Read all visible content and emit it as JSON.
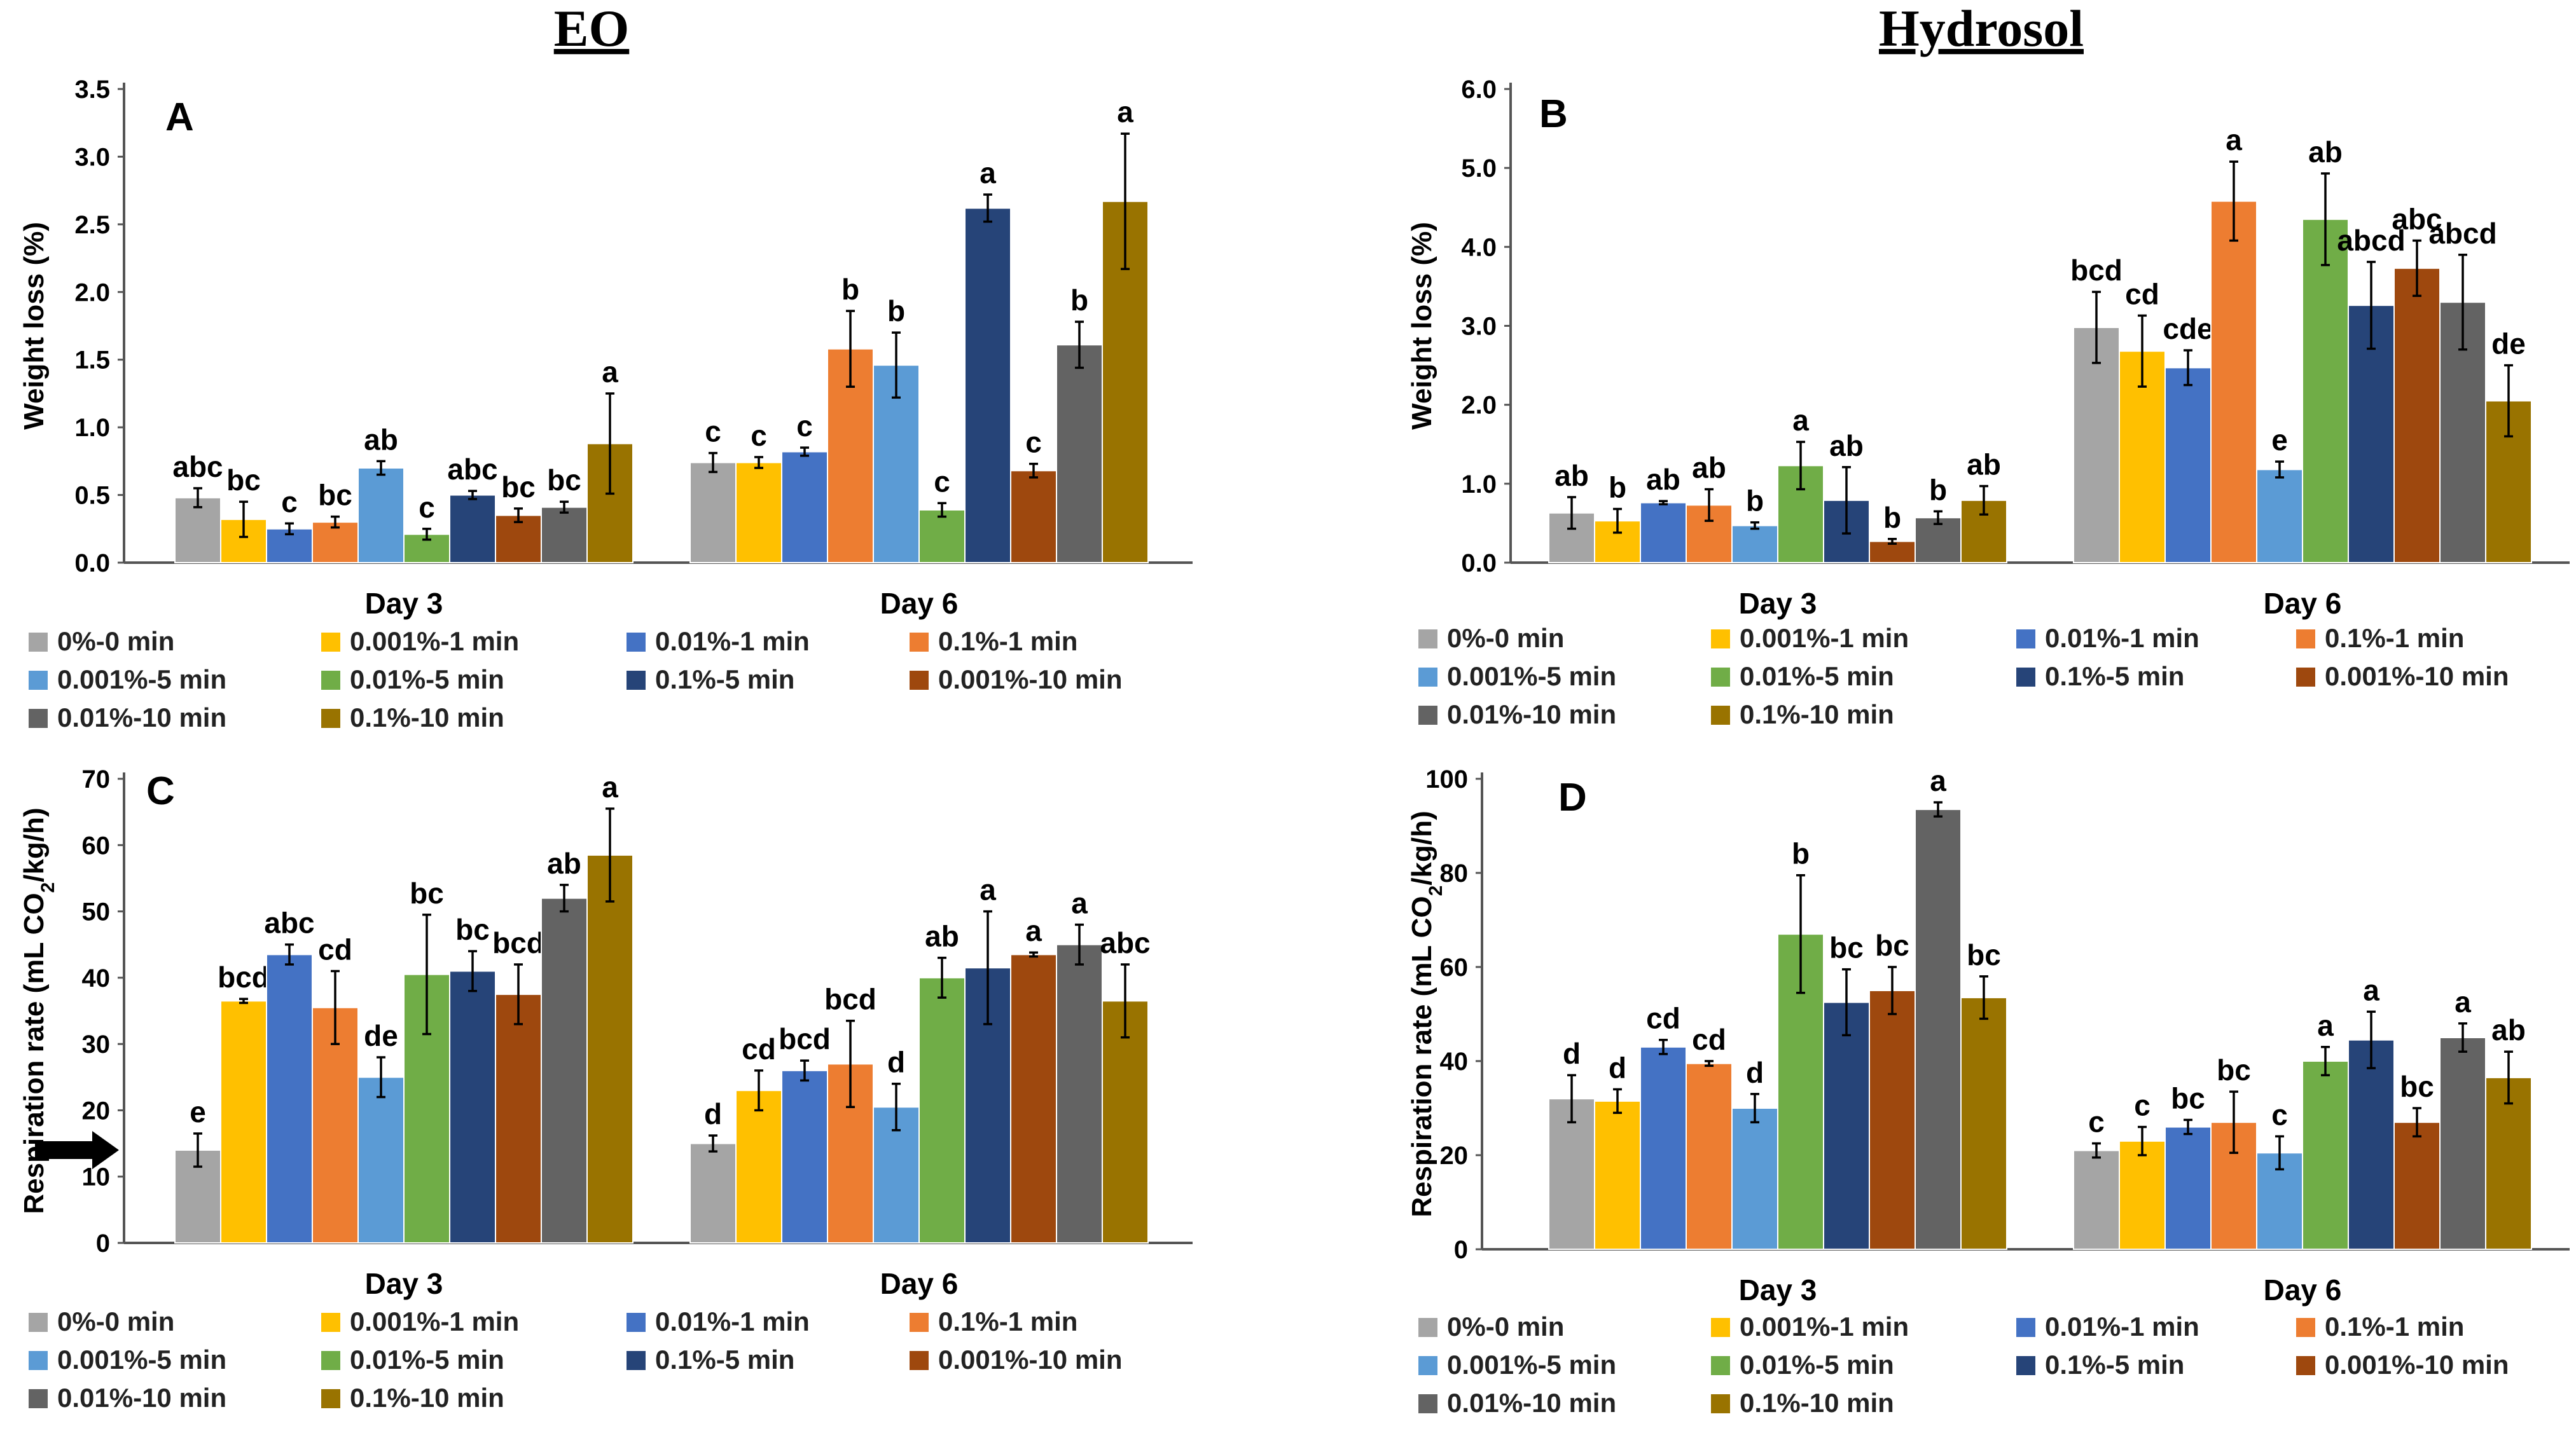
{
  "section_titles": {
    "left": "EO",
    "right": "Hydrosol"
  },
  "series_labels": [
    "0%-0 min",
    "0.001%-1 min",
    "0.01%-1 min",
    "0.1%-1 min",
    "0.001%-5 min",
    "0.01%-5 min",
    "0.1%-5 min",
    "0.001%-10 min",
    "0.01%-10 min",
    "0.1%-10 min"
  ],
  "series_colors": [
    "#a5a5a5",
    "#ffc000",
    "#4472c4",
    "#ed7d31",
    "#5b9bd5",
    "#70ad47",
    "#264478",
    "#9e480e",
    "#636363",
    "#997300"
  ],
  "chart_data": [
    {
      "panel": "A",
      "type": "bar",
      "title": "",
      "xlabel": "",
      "ylabel": "Weight loss (%)",
      "categories": [
        "Day 3",
        "Day 6"
      ],
      "ylim": [
        0,
        3.5
      ],
      "yticks": [
        "0.0",
        "0.5",
        "1.0",
        "1.5",
        "2.0",
        "2.5",
        "3.0",
        "3.5"
      ],
      "series": [
        {
          "name": "0%-0 min",
          "values": [
            0.48,
            0.74
          ],
          "errors": [
            0.07,
            0.07
          ],
          "letters": [
            "abc",
            "c"
          ]
        },
        {
          "name": "0.001%-1 min",
          "values": [
            0.32,
            0.74
          ],
          "errors": [
            0.13,
            0.04
          ],
          "letters": [
            "bc",
            "c"
          ]
        },
        {
          "name": "0.01%-1 min",
          "values": [
            0.25,
            0.82
          ],
          "errors": [
            0.04,
            0.03
          ],
          "letters": [
            "c",
            "c"
          ]
        },
        {
          "name": "0.1%-1 min",
          "values": [
            0.3,
            1.58
          ],
          "errors": [
            0.04,
            0.28
          ],
          "letters": [
            "bc",
            "b"
          ]
        },
        {
          "name": "0.001%-5 min",
          "values": [
            0.7,
            1.46
          ],
          "errors": [
            0.05,
            0.24
          ],
          "letters": [
            "ab",
            "b"
          ]
        },
        {
          "name": "0.01%-5 min",
          "values": [
            0.21,
            0.39
          ],
          "errors": [
            0.04,
            0.05
          ],
          "letters": [
            "c",
            "c"
          ]
        },
        {
          "name": "0.1%-5 min",
          "values": [
            0.5,
            2.62
          ],
          "errors": [
            0.03,
            0.1
          ],
          "letters": [
            "abc",
            "a"
          ]
        },
        {
          "name": "0.001%-10 min",
          "values": [
            0.35,
            0.68
          ],
          "errors": [
            0.05,
            0.05
          ],
          "letters": [
            "bc",
            "c"
          ]
        },
        {
          "name": "0.01%-10 min",
          "values": [
            0.41,
            1.61
          ],
          "errors": [
            0.04,
            0.17
          ],
          "letters": [
            "bc",
            "b"
          ]
        },
        {
          "name": "0.1%-10 min",
          "values": [
            0.88,
            2.67
          ],
          "errors": [
            0.37,
            0.5
          ],
          "letters": [
            "a",
            "a"
          ]
        }
      ]
    },
    {
      "panel": "B",
      "type": "bar",
      "title": "",
      "xlabel": "",
      "ylabel": "Weight loss (%)",
      "categories": [
        "Day 3",
        "Day 6"
      ],
      "ylim": [
        0,
        6.0
      ],
      "yticks": [
        "0.0",
        "1.0",
        "2.0",
        "3.0",
        "4.0",
        "5.0",
        "6.0"
      ],
      "series": [
        {
          "name": "0%-0 min",
          "values": [
            0.63,
            2.98
          ],
          "errors": [
            0.2,
            0.45
          ],
          "letters": [
            "ab",
            "bcd"
          ]
        },
        {
          "name": "0.001%-1 min",
          "values": [
            0.53,
            2.68
          ],
          "errors": [
            0.15,
            0.45
          ],
          "letters": [
            "b",
            "cd"
          ]
        },
        {
          "name": "0.01%-1 min",
          "values": [
            0.76,
            2.47
          ],
          "errors": [
            0.02,
            0.22
          ],
          "letters": [
            "ab",
            "cde"
          ]
        },
        {
          "name": "0.1%-1 min",
          "values": [
            0.73,
            4.58
          ],
          "errors": [
            0.2,
            0.5
          ],
          "letters": [
            "ab",
            "a"
          ]
        },
        {
          "name": "0.001%-5 min",
          "values": [
            0.47,
            1.18
          ],
          "errors": [
            0.04,
            0.1
          ],
          "letters": [
            "b",
            "e"
          ]
        },
        {
          "name": "0.01%-5 min",
          "values": [
            1.23,
            4.35
          ],
          "errors": [
            0.3,
            0.58
          ],
          "letters": [
            "a",
            "ab"
          ]
        },
        {
          "name": "0.1%-5 min",
          "values": [
            0.79,
            3.26
          ],
          "errors": [
            0.42,
            0.55
          ],
          "letters": [
            "ab",
            "abcd"
          ]
        },
        {
          "name": "0.001%-10 min",
          "values": [
            0.27,
            3.73
          ],
          "errors": [
            0.03,
            0.35
          ],
          "letters": [
            "b",
            "abc"
          ]
        },
        {
          "name": "0.01%-10 min",
          "values": [
            0.57,
            3.3
          ],
          "errors": [
            0.08,
            0.6
          ],
          "letters": [
            "b",
            "abcd"
          ]
        },
        {
          "name": "0.1%-10 min",
          "values": [
            0.79,
            2.05
          ],
          "errors": [
            0.18,
            0.45
          ],
          "letters": [
            "ab",
            "de"
          ]
        }
      ]
    },
    {
      "panel": "C",
      "type": "bar",
      "title": "",
      "xlabel": "",
      "ylabel": "Respiration rate (mL CO2/kg/h)",
      "categories": [
        "Day 3",
        "Day 6"
      ],
      "ylim": [
        0,
        70
      ],
      "yticks": [
        "0",
        "10",
        "20",
        "30",
        "40",
        "50",
        "60",
        "70"
      ],
      "series": [
        {
          "name": "0%-0 min",
          "values": [
            14,
            15
          ],
          "errors": [
            2.5,
            1.2
          ],
          "letters": [
            "e",
            "d"
          ]
        },
        {
          "name": "0.001%-1 min",
          "values": [
            36.5,
            23
          ],
          "errors": [
            0.3,
            3
          ],
          "letters": [
            "bcd",
            "cd"
          ]
        },
        {
          "name": "0.01%-1 min",
          "values": [
            43.5,
            26
          ],
          "errors": [
            1.5,
            1.5
          ],
          "letters": [
            "abc",
            "bcd"
          ]
        },
        {
          "name": "0.1%-1 min",
          "values": [
            35.5,
            27
          ],
          "errors": [
            5.5,
            6.5
          ],
          "letters": [
            "cd",
            "bcd"
          ]
        },
        {
          "name": "0.001%-5 min",
          "values": [
            25,
            20.5
          ],
          "errors": [
            3,
            3.5
          ],
          "letters": [
            "de",
            "d"
          ]
        },
        {
          "name": "0.01%-5 min",
          "values": [
            40.5,
            40
          ],
          "errors": [
            9,
            3
          ],
          "letters": [
            "bc",
            "ab"
          ]
        },
        {
          "name": "0.1%-5 min",
          "values": [
            41,
            41.5
          ],
          "errors": [
            3,
            8.5
          ],
          "letters": [
            "bc",
            "a"
          ]
        },
        {
          "name": "0.001%-10 min",
          "values": [
            37.5,
            43.5
          ],
          "errors": [
            4.5,
            0.3
          ],
          "letters": [
            "bcd",
            "a"
          ]
        },
        {
          "name": "0.01%-10 min",
          "values": [
            52,
            45
          ],
          "errors": [
            2,
            3
          ],
          "letters": [
            "ab",
            "a"
          ]
        },
        {
          "name": "0.1%-10 min",
          "values": [
            58.5,
            36.5
          ],
          "errors": [
            7,
            5.5
          ],
          "letters": [
            "a",
            "abc"
          ]
        }
      ],
      "annotations": [
        "arrow marker pointing at y = 14"
      ]
    },
    {
      "panel": "D",
      "type": "bar",
      "title": "",
      "xlabel": "",
      "ylabel": "Respiration rate (mL CO2/kg/h)",
      "categories": [
        "Day 3",
        "Day 6"
      ],
      "ylim": [
        0,
        100
      ],
      "yticks": [
        "0",
        "20",
        "40",
        "60",
        "80",
        "100"
      ],
      "series": [
        {
          "name": "0%-0 min",
          "values": [
            32,
            21
          ],
          "errors": [
            5,
            1.5
          ],
          "letters": [
            "d",
            "c"
          ]
        },
        {
          "name": "0.001%-1 min",
          "values": [
            31.5,
            23
          ],
          "errors": [
            2.5,
            3
          ],
          "letters": [
            "d",
            "c"
          ]
        },
        {
          "name": "0.01%-1 min",
          "values": [
            43,
            26
          ],
          "errors": [
            1.5,
            1.5
          ],
          "letters": [
            "cd",
            "bc"
          ]
        },
        {
          "name": "0.1%-1 min",
          "values": [
            39.5,
            27
          ],
          "errors": [
            0.5,
            6.5
          ],
          "letters": [
            "cd",
            "bc"
          ]
        },
        {
          "name": "0.001%-5 min",
          "values": [
            30,
            20.5
          ],
          "errors": [
            3,
            3.5
          ],
          "letters": [
            "d",
            "c"
          ]
        },
        {
          "name": "0.01%-5 min",
          "values": [
            67,
            40
          ],
          "errors": [
            12.5,
            3
          ],
          "letters": [
            "b",
            "a"
          ]
        },
        {
          "name": "0.1%-5 min",
          "values": [
            52.5,
            44.5
          ],
          "errors": [
            7,
            6
          ],
          "letters": [
            "bc",
            "a"
          ]
        },
        {
          "name": "0.001%-10 min",
          "values": [
            55,
            27
          ],
          "errors": [
            5,
            3
          ],
          "letters": [
            "bc",
            "bc"
          ]
        },
        {
          "name": "0.01%-10 min",
          "values": [
            93.5,
            45
          ],
          "errors": [
            1.5,
            3
          ],
          "letters": [
            "a",
            "a"
          ]
        },
        {
          "name": "0.1%-10 min",
          "values": [
            53.5,
            36.5
          ],
          "errors": [
            4.5,
            5.5
          ],
          "letters": [
            "bc",
            "ab"
          ]
        }
      ]
    }
  ]
}
